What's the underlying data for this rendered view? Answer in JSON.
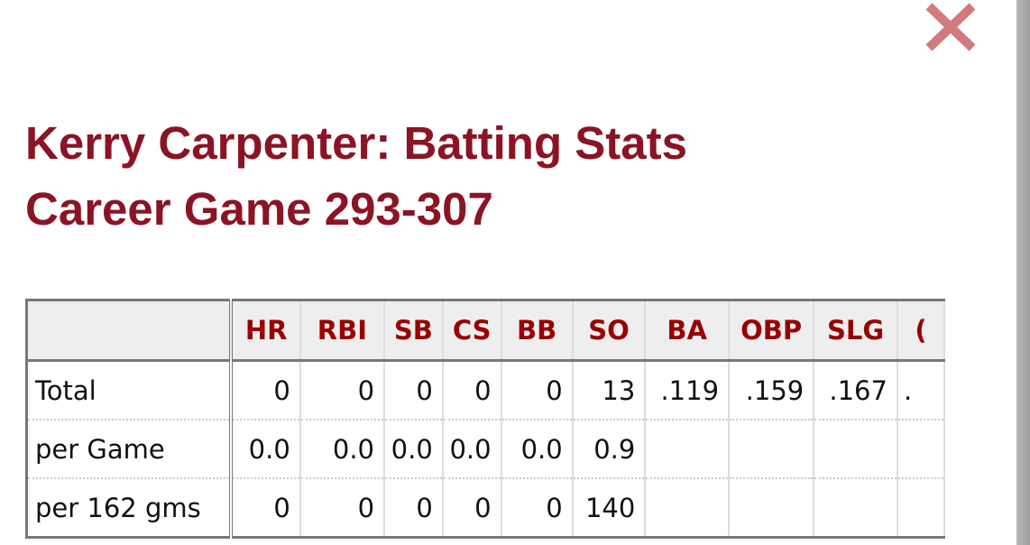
{
  "title_line1": "Kerry Carpenter: Batting Stats",
  "title_line2": "Career Game 293-307",
  "close_icon": "close-x-icon",
  "colors": {
    "title": "#8b1424",
    "header_text": "#990000",
    "close": "#d27a7e"
  },
  "table": {
    "columns": [
      "",
      "HR",
      "RBI",
      "SB",
      "CS",
      "BB",
      "SO",
      "BA",
      "OBP",
      "SLG",
      "("
    ],
    "rows": [
      {
        "label": "Total",
        "values": [
          "0",
          "0",
          "0",
          "0",
          "0",
          "13",
          ".119",
          ".159",
          ".167",
          "."
        ]
      },
      {
        "label": "per Game",
        "values": [
          "0.0",
          "0.0",
          "0.0",
          "0.0",
          "0.0",
          "0.9",
          "",
          "",
          "",
          ""
        ]
      },
      {
        "label": "per 162 gms",
        "values": [
          "0",
          "0",
          "0",
          "0",
          "0",
          "140",
          "",
          "",
          "",
          ""
        ]
      }
    ]
  }
}
